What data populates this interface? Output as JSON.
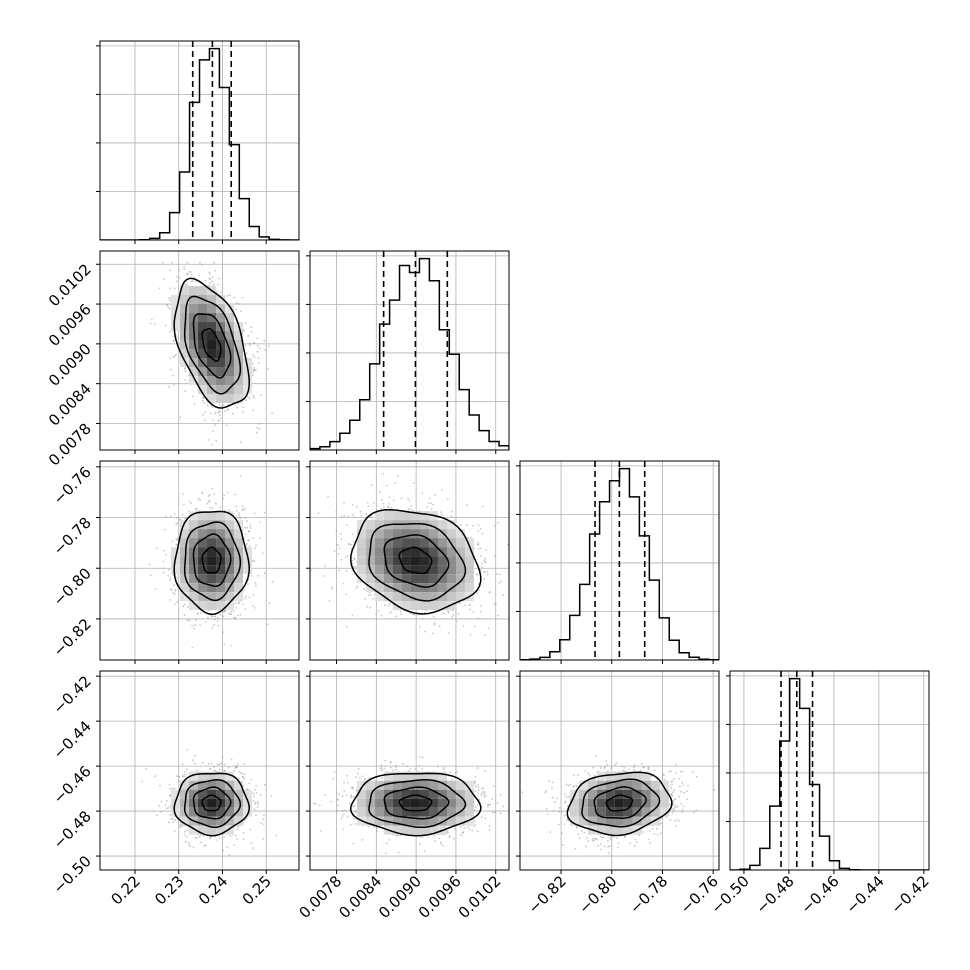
{
  "chart_data": {
    "type": "corner",
    "grid": true,
    "colors": {
      "hist": "#000000",
      "quantile": "#000000",
      "scatter": "#9a9a9a",
      "grid": "#b0b0b0"
    },
    "parameters": [
      {
        "center": 0.2375,
        "sigma": 0.0042,
        "range": [
          0.212,
          0.2575
        ],
        "ticks": [
          0.22,
          0.23,
          0.24,
          0.25
        ],
        "tick_labels": [
          "0.22",
          "0.23",
          "0.24",
          "0.25"
        ],
        "quantiles": [
          0.2332,
          0.2377,
          0.242
        ]
      },
      {
        "center": 0.00899,
        "sigma": 0.00048,
        "range": [
          0.0074,
          0.0104
        ],
        "ticks": [
          0.0078,
          0.0084,
          0.009,
          0.0096,
          0.0102
        ],
        "tick_labels": [
          "0.0078",
          "0.0084",
          "0.0090",
          "0.0096",
          "0.0102"
        ],
        "quantiles": [
          0.00851,
          0.00899,
          0.00947
        ]
      },
      {
        "center": -0.797,
        "sigma": 0.0101,
        "range": [
          -0.8362,
          -0.7577
        ],
        "ticks": [
          -0.82,
          -0.8,
          -0.78,
          -0.76
        ],
        "tick_labels": [
          "−0.82",
          "−0.80",
          "−0.78",
          "−0.76"
        ],
        "quantiles": [
          -0.8066,
          -0.797,
          -0.787
        ]
      },
      {
        "center": -0.4765,
        "sigma": 0.0069,
        "range": [
          -0.5062,
          -0.4177
        ],
        "ticks": [
          -0.5,
          -0.48,
          -0.46,
          -0.44,
          -0.42
        ],
        "tick_labels": [
          "−0.50",
          "−0.48",
          "−0.46",
          "−0.44",
          "−0.42"
        ],
        "quantiles": [
          -0.4835,
          -0.4765,
          -0.4695
        ]
      }
    ],
    "correlations": {
      "1-0": -0.45,
      "2-0": 0.0,
      "2-1": -0.2,
      "3-0": 0.0,
      "3-1": 0.0,
      "3-2": 0.15
    },
    "hist_bins": 20
  }
}
